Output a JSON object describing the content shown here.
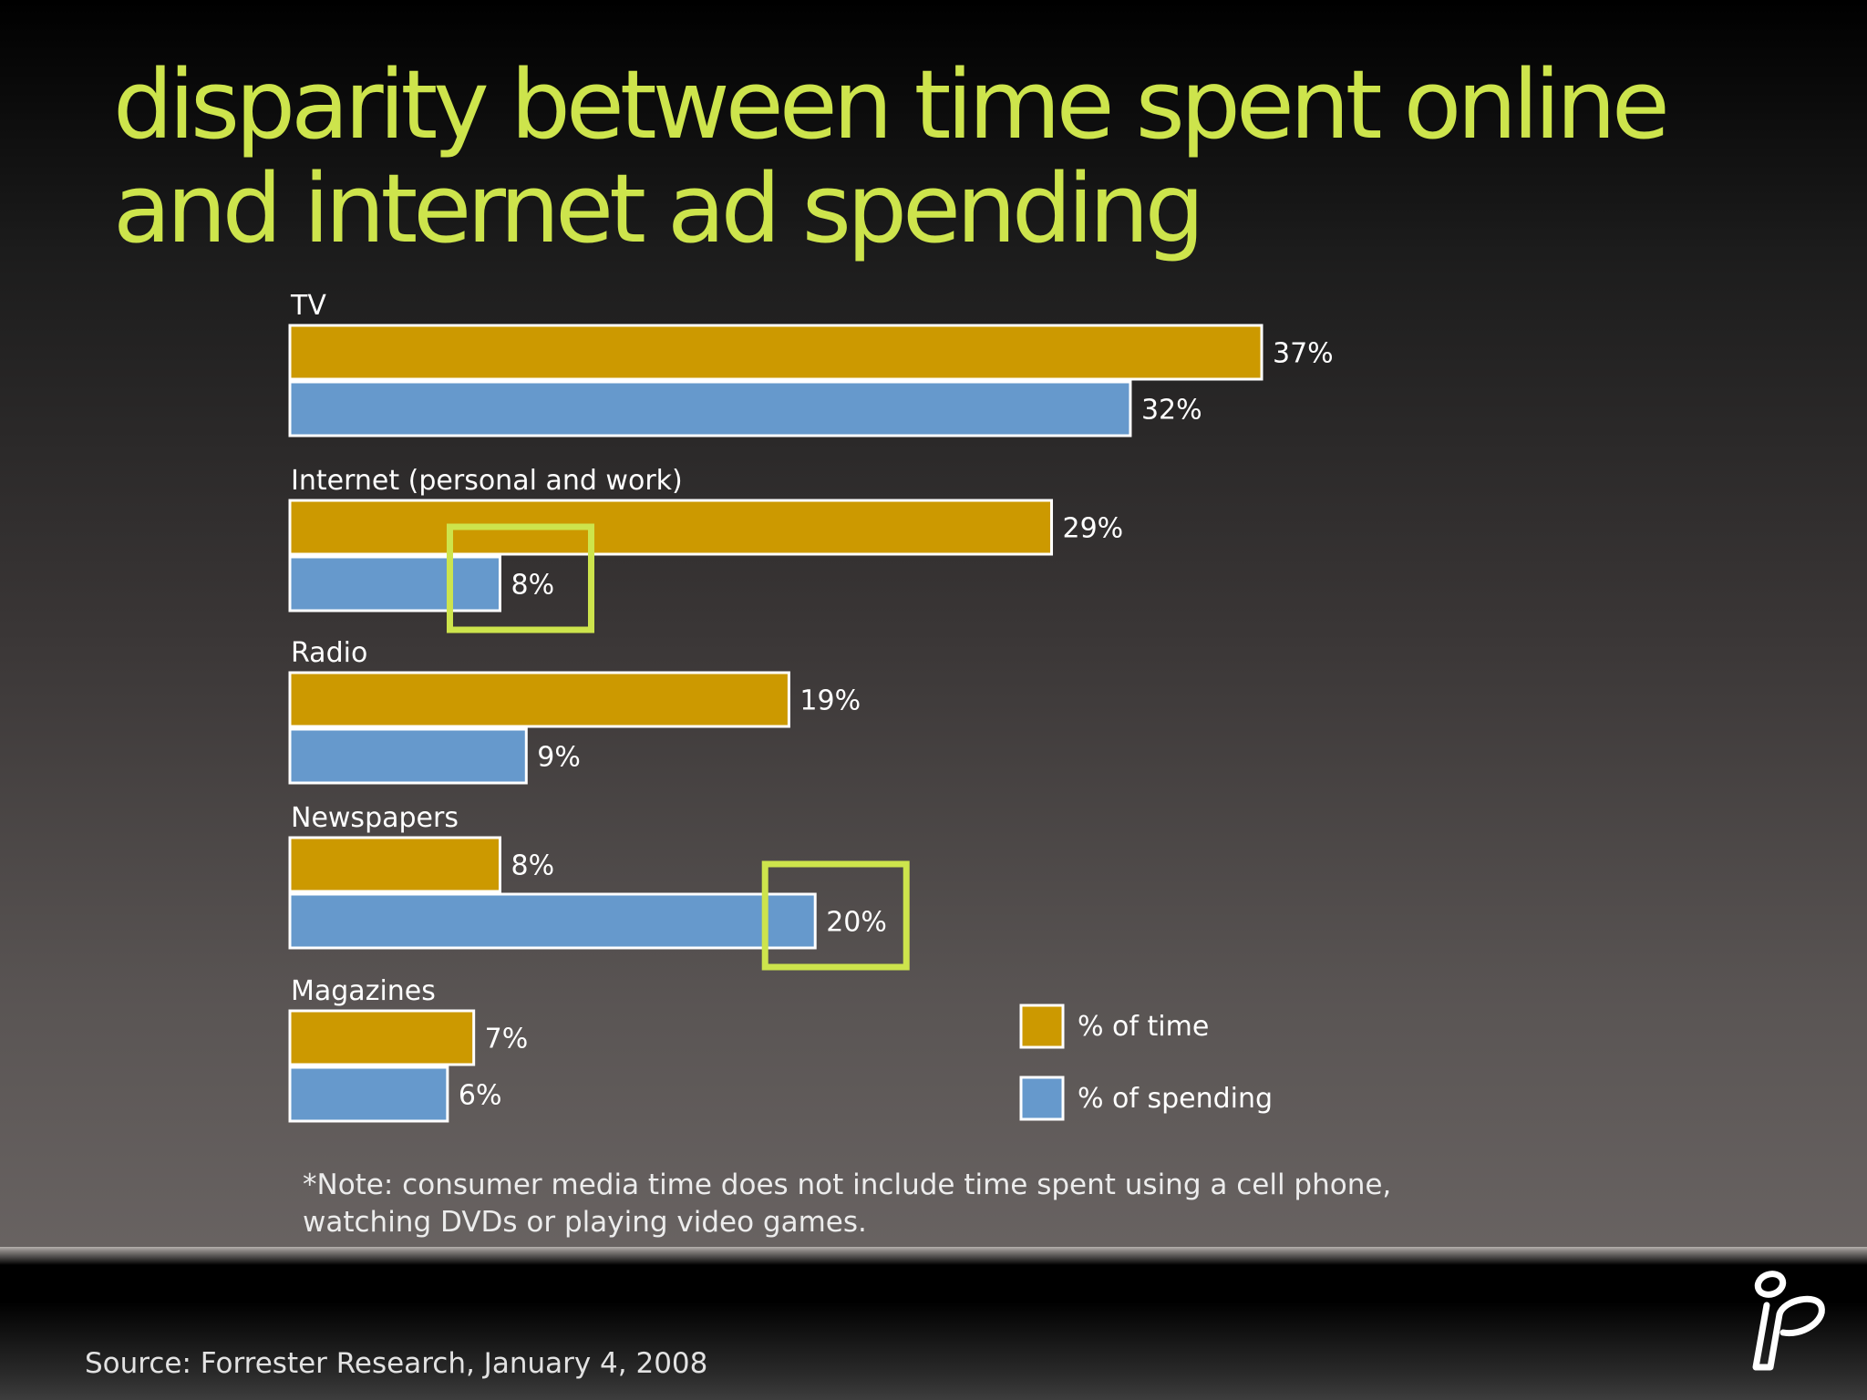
{
  "slide": {
    "title_line1": "disparity between time spent online",
    "title_line2": "and internet ad spending",
    "note_line1": "*Note: consumer media time does not include time spent using a cell phone,",
    "note_line2": "watching DVDs or playing video games.",
    "source": "Source: Forrester Research, January 4, 2008",
    "logo_icon": "brand-logo-icon"
  },
  "chart_data": {
    "type": "bar",
    "orientation": "horizontal",
    "categories": [
      "TV",
      "Internet (personal and work)",
      "Radio",
      "Newspapers",
      "Magazines"
    ],
    "series": [
      {
        "name": "% of time",
        "values": [
          37,
          29,
          19,
          8,
          7
        ],
        "labels": [
          "37%",
          "29%",
          "19%",
          "8%",
          "7%"
        ],
        "color": "#cc9900"
      },
      {
        "name": "% of spending",
        "values": [
          32,
          8,
          9,
          20,
          6
        ],
        "labels": [
          "32%",
          "8%",
          "9%",
          "20%",
          "6%"
        ],
        "color": "#6699cc"
      }
    ],
    "highlights": [
      {
        "category": "Internet (personal and work)",
        "series": "% of spending",
        "color": "#cde44c"
      },
      {
        "category": "Newspapers",
        "series": "% of spending",
        "color": "#cde44c"
      }
    ],
    "legend_position": "bottom-right",
    "grid": false,
    "xlim": [
      0,
      37
    ]
  }
}
